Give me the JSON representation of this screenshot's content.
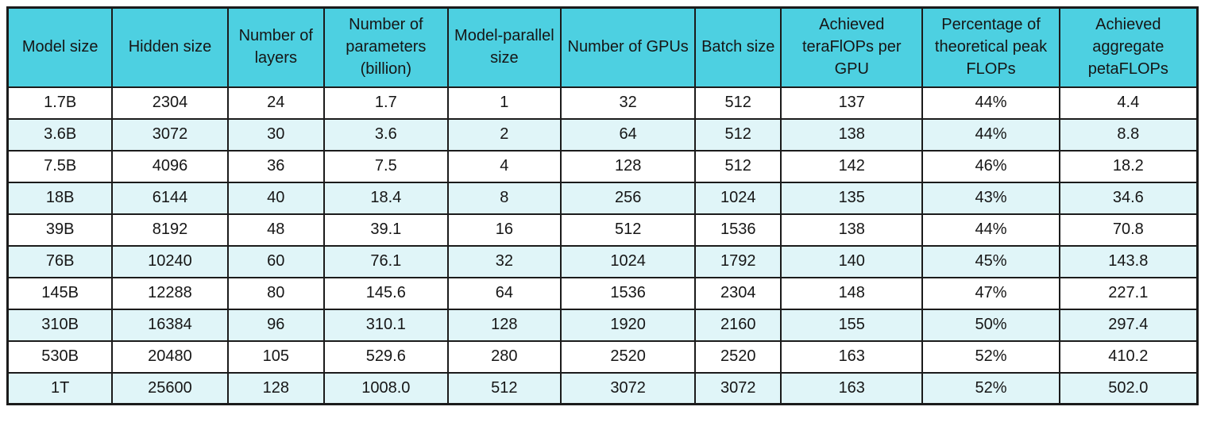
{
  "chart_data": {
    "type": "table",
    "columns": [
      "Model size",
      "Hidden size",
      "Number of layers",
      "Number of parameters (billion)",
      "Model-parallel size",
      "Number of GPUs",
      "Batch size",
      "Achieved teraFlOPs per GPU",
      "Percentage of theoretical peak FLOPs",
      "Achieved aggregate petaFLOPs"
    ],
    "rows": [
      [
        "1.7B",
        "2304",
        "24",
        "1.7",
        "1",
        "32",
        "512",
        "137",
        "44%",
        "4.4"
      ],
      [
        "3.6B",
        "3072",
        "30",
        "3.6",
        "2",
        "64",
        "512",
        "138",
        "44%",
        "8.8"
      ],
      [
        "7.5B",
        "4096",
        "36",
        "7.5",
        "4",
        "128",
        "512",
        "142",
        "46%",
        "18.2"
      ],
      [
        "18B",
        "6144",
        "40",
        "18.4",
        "8",
        "256",
        "1024",
        "135",
        "43%",
        "34.6"
      ],
      [
        "39B",
        "8192",
        "48",
        "39.1",
        "16",
        "512",
        "1536",
        "138",
        "44%",
        "70.8"
      ],
      [
        "76B",
        "10240",
        "60",
        "76.1",
        "32",
        "1024",
        "1792",
        "140",
        "45%",
        "143.8"
      ],
      [
        "145B",
        "12288",
        "80",
        "145.6",
        "64",
        "1536",
        "2304",
        "148",
        "47%",
        "227.1"
      ],
      [
        "310B",
        "16384",
        "96",
        "310.1",
        "128",
        "1920",
        "2160",
        "155",
        "50%",
        "297.4"
      ],
      [
        "530B",
        "20480",
        "105",
        "529.6",
        "280",
        "2520",
        "2520",
        "163",
        "52%",
        "410.2"
      ],
      [
        "1T",
        "25600",
        "128",
        "1008.0",
        "512",
        "3072",
        "3072",
        "163",
        "52%",
        "502.0"
      ]
    ],
    "column_width_percents": [
      8.8,
      9.7,
      8.1,
      10.4,
      9.5,
      11.3,
      7.2,
      11.9,
      11.5,
      11.6
    ],
    "stripe_pattern": "rows 2,4,6,8,10 shaded",
    "colors": {
      "header_bg": "#4dd0e1",
      "stripe_bg": "#e0f5f8",
      "row_bg": "#ffffff",
      "border": "#1b1b1b",
      "text": "#161616"
    }
  }
}
